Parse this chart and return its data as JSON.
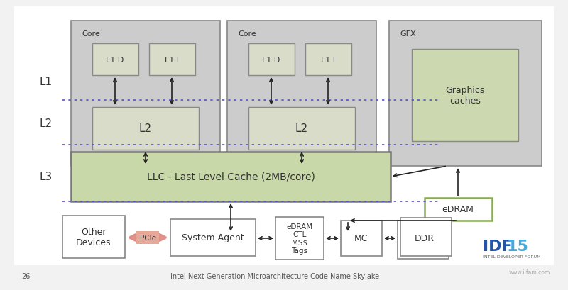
{
  "bg_color": "#f2f2f2",
  "watermark": "www.iifam.com",
  "idf_subtitle": "INTEL DEVELOPER FORUM",
  "l1_label": "L1",
  "l2_label": "L2",
  "l3_label": "L3",
  "core1_label": "Core",
  "core2_label": "Core",
  "gfx_label": "GFX",
  "l1d_1": "L1 D",
  "l1i_1": "L1 I",
  "l1d_2": "L1 D",
  "l1i_2": "L1 I",
  "l2_1": "L2",
  "l2_2": "L2",
  "graphics_caches": "Graphics\ncaches",
  "llc_label": "LLC - Last Level Cache (2MB/core)",
  "edram_label": "eDRAM",
  "other_devices_label": "Other\nDevices",
  "pcie_label": "PCIe",
  "system_agent_label": "System Agent",
  "edram_ctl_label": "eDRAM\nCTL\nMS$\nTags",
  "mc_label": "MC",
  "ddr_label": "DDR",
  "page_num": "26",
  "slide_title": "Intel Next Generation Microarchitecture Code Name Skylake",
  "color_bg": "#f2f2f2",
  "color_outer_box": "#cccccc",
  "color_inner_box": "#d8dcc8",
  "color_green_box": "#ccd8b0",
  "color_llc": "#c8d8a8",
  "color_white": "#ffffff",
  "color_pcie_fill": "#e8a898",
  "color_pcie_arrow": "#e09088",
  "color_dotted": "#5555cc",
  "color_arrow": "#222222",
  "color_edram_border": "#88aa55",
  "color_idf_blue": "#2255aa",
  "color_idf_15": "#44aadd",
  "color_text_dark": "#333333",
  "color_text_gray": "#888888"
}
